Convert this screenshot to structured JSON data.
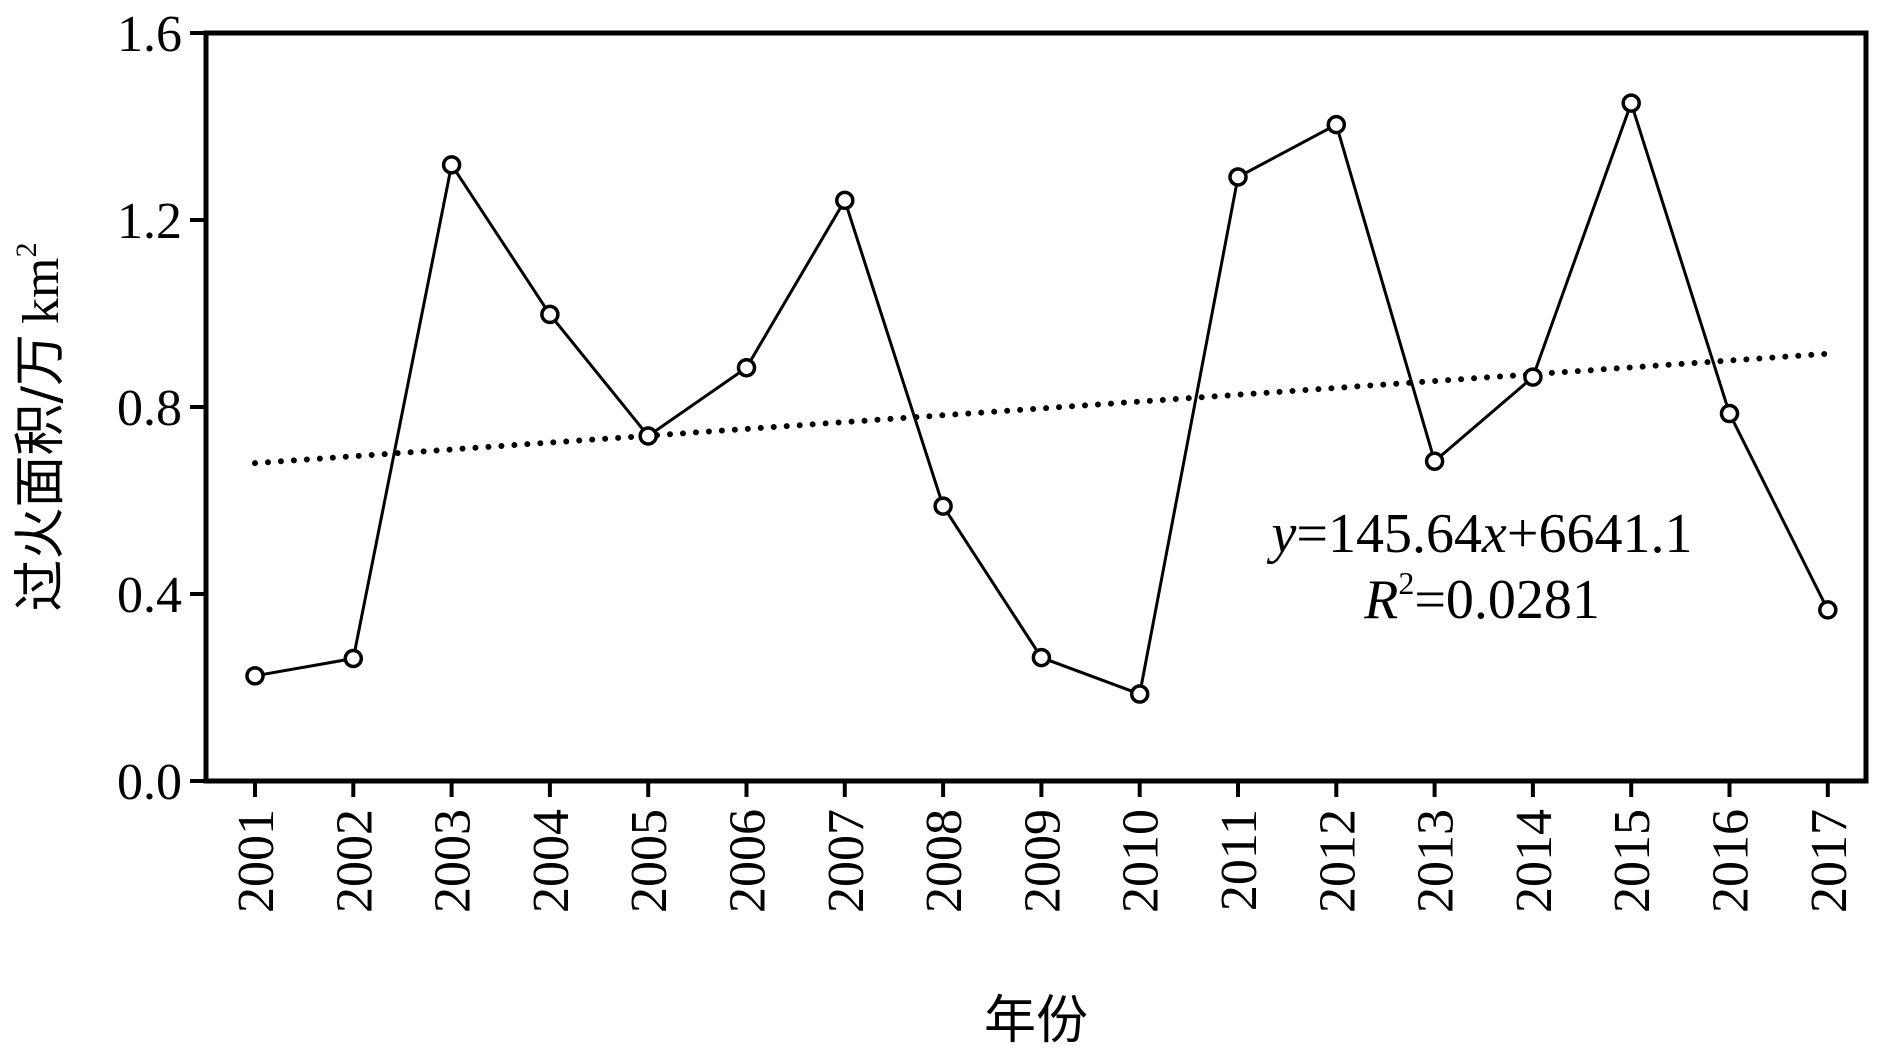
{
  "chart_data": {
    "type": "line",
    "xlabel": "年份",
    "ylabel_cn": "过火面积/万",
    "ylabel_unit": "km",
    "ylabel_exp": "2",
    "ylim": [
      0,
      1.6
    ],
    "yticks": [
      0.0,
      0.4,
      0.8,
      1.2,
      1.6
    ],
    "ytick_labels": [
      "0.0",
      "0.4",
      "0.8",
      "1.2",
      "1.6"
    ],
    "categories": [
      "2001",
      "2002",
      "2003",
      "2004",
      "2005",
      "2006",
      "2007",
      "2008",
      "2009",
      "2010",
      "2011",
      "2012",
      "2013",
      "2014",
      "2015",
      "2016",
      "2017"
    ],
    "series": [
      {
        "values": [
          0.225,
          0.262,
          1.318,
          0.998,
          0.738,
          0.884,
          1.242,
          0.588,
          0.264,
          0.186,
          1.292,
          1.404,
          0.684,
          0.864,
          1.45,
          0.786,
          0.366
        ],
        "marker": "open-circle",
        "color": "#000000"
      }
    ],
    "trendline": {
      "style": "dotted",
      "color": "#000000",
      "start": 0.68,
      "end": 0.914
    },
    "annotation": {
      "eq_y": "y",
      "eq_mid": "=145.64",
      "eq_x": "x",
      "eq_tail": "+6641.1",
      "r_R": "R",
      "r_exp": "2",
      "r_tail": "=0.0281"
    },
    "grid": false,
    "legend": "none"
  }
}
